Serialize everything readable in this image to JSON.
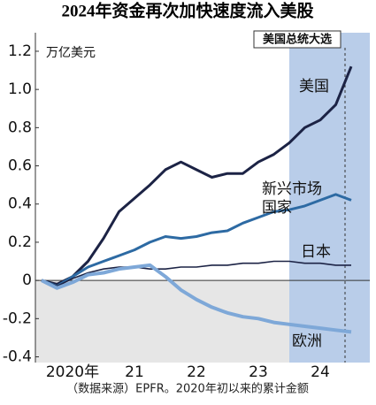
{
  "chart_data": {
    "type": "line",
    "title": "2024年资金再次加快速度流入美股",
    "y_unit": "万亿美元",
    "source": "（数据来源）EPFR。2020年初以来的累计金额",
    "x": [
      2020,
      2020.25,
      2020.5,
      2020.75,
      2021,
      2021.25,
      2021.5,
      2021.75,
      2022,
      2022.25,
      2022.5,
      2022.75,
      2023,
      2023.25,
      2023.5,
      2023.75,
      2024,
      2024.25,
      2024.5,
      2024.75,
      2025
    ],
    "series": [
      {
        "name": "美国",
        "color": "#1c2345",
        "width": 3,
        "values": [
          0,
          -0.02,
          0.02,
          0.1,
          0.22,
          0.36,
          0.43,
          0.5,
          0.58,
          0.62,
          0.58,
          0.54,
          0.56,
          0.56,
          0.62,
          0.66,
          0.72,
          0.8,
          0.84,
          0.92,
          1.12
        ]
      },
      {
        "name": "新兴市场国家",
        "color": "#2d6aa3",
        "width": 3,
        "values": [
          0,
          -0.03,
          0.02,
          0.07,
          0.1,
          0.13,
          0.16,
          0.2,
          0.23,
          0.22,
          0.23,
          0.25,
          0.26,
          0.3,
          0.33,
          0.36,
          0.37,
          0.39,
          0.42,
          0.45,
          0.42
        ]
      },
      {
        "name": "日本",
        "color": "#1c2345",
        "width": 1.6,
        "values": [
          0,
          -0.03,
          0.01,
          0.04,
          0.06,
          0.07,
          0.07,
          0.06,
          0.06,
          0.07,
          0.07,
          0.08,
          0.08,
          0.09,
          0.09,
          0.1,
          0.1,
          0.09,
          0.09,
          0.08,
          0.08
        ]
      },
      {
        "name": "欧洲",
        "color": "#7ea8d8",
        "width": 4,
        "values": [
          0,
          -0.04,
          -0.01,
          0.03,
          0.04,
          0.06,
          0.07,
          0.08,
          0.02,
          -0.05,
          -0.1,
          -0.14,
          -0.17,
          -0.19,
          -0.2,
          -0.22,
          -0.23,
          -0.24,
          -0.25,
          -0.26,
          -0.27
        ]
      }
    ],
    "xlim": [
      2019.9,
      2025.3
    ],
    "xticks": [
      {
        "value": 2020.5,
        "label": "2020年"
      },
      {
        "value": 2021.5,
        "label": "21"
      },
      {
        "value": 2022.5,
        "label": "22"
      },
      {
        "value": 2023.5,
        "label": "23"
      },
      {
        "value": 2024.5,
        "label": "24"
      }
    ],
    "ylim": [
      -0.43,
      1.26
    ],
    "yticks": [
      1.2,
      {
        "value": 1,
        "label": "1.0"
      },
      0.8,
      0.6,
      0.4,
      0.2,
      0,
      -0.2,
      -0.4
    ],
    "shade_x": [
      2024,
      2025.3
    ],
    "annotation": {
      "x": 2024.9,
      "label": "美国总统大选"
    }
  }
}
